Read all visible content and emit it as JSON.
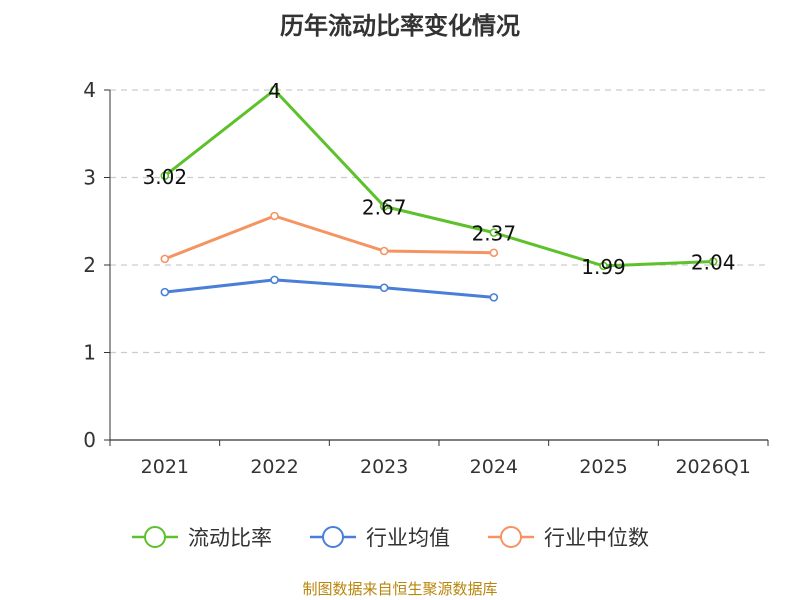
{
  "chart_data": {
    "type": "line",
    "title": "历年流动比率变化情况",
    "categories": [
      "2021",
      "2022",
      "2023",
      "2024",
      "2025",
      "2026Q1"
    ],
    "ylim": [
      0,
      4
    ],
    "yticks": [
      0,
      1,
      2,
      3,
      4
    ],
    "grid": true,
    "legend_position": "bottom",
    "series": [
      {
        "name": "流动比率",
        "color": "#5cc12a",
        "values": [
          3.02,
          4,
          2.67,
          2.37,
          1.99,
          2.04
        ],
        "labels": [
          "3.02",
          "4",
          "2.67",
          "2.37",
          "1.99",
          "2.04"
        ],
        "show_labels": true
      },
      {
        "name": "行业均值",
        "color": "#4a7fd8",
        "values": [
          1.69,
          1.83,
          1.74,
          1.63,
          null,
          null
        ],
        "show_labels": false
      },
      {
        "name": "行业中位数",
        "color": "#f59462",
        "values": [
          2.07,
          2.56,
          2.16,
          2.14,
          null,
          null
        ],
        "show_labels": false
      }
    ]
  },
  "source": "制图数据来自恒生聚源数据库"
}
